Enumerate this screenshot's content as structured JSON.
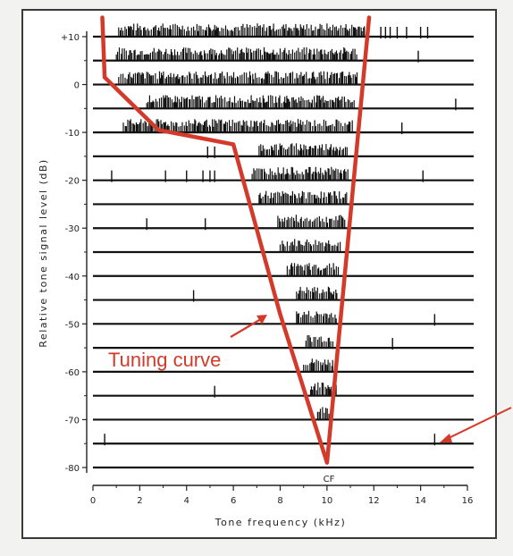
{
  "chart_data": {
    "type": "raster",
    "title": "",
    "xlabel": "Tone frequency (kHz)",
    "ylabel": "Relative tone signal level (dB)",
    "xlim": [
      0,
      16
    ],
    "ylim": [
      -80,
      10
    ],
    "x_ticks": [
      "0",
      "2",
      "4",
      "6",
      "8",
      "10",
      "12",
      "14",
      "16"
    ],
    "y_ticks": [
      "+10",
      "0",
      "-10",
      "-20",
      "-30",
      "-40",
      "-50",
      "-60",
      "-70",
      "-80"
    ],
    "rows_db": [
      10,
      5,
      0,
      -5,
      -10,
      -15,
      -20,
      -25,
      -30,
      -35,
      -40,
      -45,
      -50,
      -55,
      -60,
      -65,
      -70,
      -75,
      -80
    ],
    "response_area": [
      {
        "level": 10,
        "x_start": 1.1,
        "x_end": 11.6
      },
      {
        "level": 5,
        "x_start": 1.0,
        "x_end": 11.3
      },
      {
        "level": 0,
        "x_start": 1.1,
        "x_end": 11.3
      },
      {
        "level": -5,
        "x_start": 2.3,
        "x_end": 11.2
      },
      {
        "level": -10,
        "x_start": 1.3,
        "x_end": 11.1
      },
      {
        "level": -15,
        "x_start": 7.1,
        "x_end": 10.9
      },
      {
        "level": -20,
        "x_start": 6.8,
        "x_end": 10.9
      },
      {
        "level": -25,
        "x_start": 7.1,
        "x_end": 10.9
      },
      {
        "level": -30,
        "x_start": 7.9,
        "x_end": 10.8
      },
      {
        "level": -35,
        "x_start": 8.0,
        "x_end": 10.6
      },
      {
        "level": -40,
        "x_start": 8.3,
        "x_end": 10.5
      },
      {
        "level": -45,
        "x_start": 8.7,
        "x_end": 10.5
      },
      {
        "level": -50,
        "x_start": 8.7,
        "x_end": 10.4
      },
      {
        "level": -55,
        "x_start": 9.1,
        "x_end": 10.3
      },
      {
        "level": -60,
        "x_start": 9.0,
        "x_end": 10.3
      },
      {
        "level": -65,
        "x_start": 9.3,
        "x_end": 10.4
      },
      {
        "level": -70,
        "x_start": 9.6,
        "x_end": 10.3
      }
    ],
    "spontaneous_spikes": [
      {
        "level": 10,
        "x": [
          12.3,
          12.5,
          12.7,
          13.0,
          13.4,
          14.0,
          14.3
        ]
      },
      {
        "level": 5,
        "x": [
          13.9
        ]
      },
      {
        "level": -5,
        "x": [
          15.5
        ]
      },
      {
        "level": -10,
        "x": [
          13.2
        ]
      },
      {
        "level": -15,
        "x": [
          4.9,
          5.2
        ]
      },
      {
        "level": -20,
        "x": [
          0.8,
          3.1,
          4.0,
          4.7,
          5.0,
          5.2,
          14.1
        ]
      },
      {
        "level": -30,
        "x": [
          2.3,
          4.8
        ]
      },
      {
        "level": -45,
        "x": [
          4.3
        ]
      },
      {
        "level": -50,
        "x": [
          14.6
        ]
      },
      {
        "level": -55,
        "x": [
          12.8
        ]
      },
      {
        "level": -65,
        "x": [
          5.2
        ]
      },
      {
        "level": -75,
        "x": [
          0.5,
          14.6
        ]
      }
    ],
    "tuning_curve": {
      "x": [
        0.4,
        0.5,
        2.8,
        6.0,
        8.0,
        10.0,
        11.8
      ],
      "y": [
        14,
        1.5,
        -9.5,
        -12.5,
        -48,
        -79,
        14
      ]
    },
    "cf_khz": 10,
    "colors": {
      "curve": "#d43a2a",
      "trace": "#111111"
    },
    "annotations": [
      {
        "text": "Tuning curve",
        "color": "#d43a2a"
      },
      {
        "text": "CF"
      }
    ]
  }
}
